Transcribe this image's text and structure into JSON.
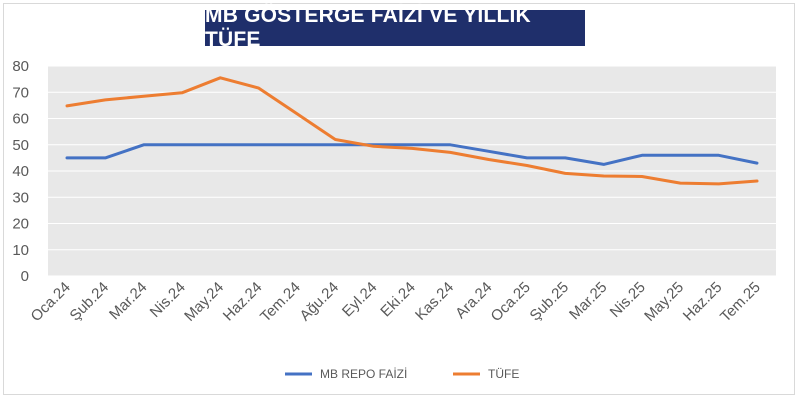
{
  "chart_data": {
    "type": "line",
    "title": "MB GÖSTERGE FAİZİ VE YILLIK TÜFE",
    "categories": [
      "Oca.24",
      "Şub.24",
      "Mar.24",
      "Nis.24",
      "May.24",
      "Haz.24",
      "Tem.24",
      "Ağu.24",
      "Eyl.24",
      "Eki.24",
      "Kas.24",
      "Ara.24",
      "Oca.25",
      "Şub.25",
      "Mar.25",
      "Nis.25",
      "May.25",
      "Haz.25",
      "Tem.25"
    ],
    "ylim": [
      0,
      80
    ],
    "yticks": [
      0,
      10,
      20,
      30,
      40,
      50,
      60,
      70,
      80
    ],
    "grid": true,
    "legend_position": "bottom",
    "series": [
      {
        "name": "MB REPO FAİZİ",
        "color": "#4472c4",
        "values": [
          45,
          45,
          50,
          50,
          50,
          50,
          50,
          50,
          50,
          50,
          50,
          47.5,
          45,
          45,
          42.5,
          46,
          46,
          46,
          43
        ]
      },
      {
        "name": "TÜFE",
        "color": "#ed7d31",
        "values": [
          64.8,
          67.1,
          68.5,
          69.8,
          75.5,
          71.6,
          61.8,
          52,
          49.4,
          48.6,
          47.1,
          44.4,
          42.1,
          39.1,
          38.1,
          37.9,
          35.4,
          35.1,
          36.2
        ]
      }
    ]
  }
}
